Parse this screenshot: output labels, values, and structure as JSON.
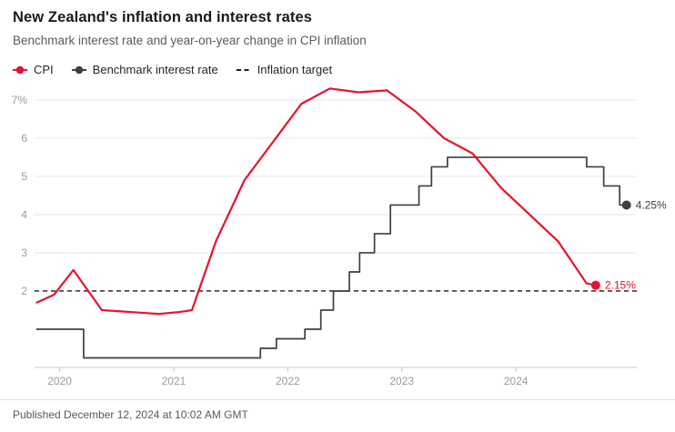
{
  "header": {
    "title": "New Zealand's inflation and interest rates",
    "subtitle": "Benchmark interest rate and year-on-year change in CPI inflation"
  },
  "legend": [
    {
      "label": "CPI",
      "color": "#e8122d",
      "style": "dot-line"
    },
    {
      "label": "Benchmark interest rate",
      "color": "#3f3f3f",
      "style": "dot-line"
    },
    {
      "label": "Inflation target",
      "color": "#1a1a1a",
      "style": "dashed"
    }
  ],
  "chart_data": {
    "type": "line",
    "title": "New Zealand's inflation and interest rates",
    "x_axis": {
      "ticks": [
        2020,
        2021,
        2022,
        2023,
        2024
      ],
      "labels": [
        "2020",
        "2021",
        "2022",
        "2023",
        "2024"
      ],
      "range": [
        2019.78,
        2025.06
      ]
    },
    "y_axis": {
      "ticks": [
        2,
        3,
        4,
        5,
        6,
        7
      ],
      "labels": [
        "2",
        "3",
        "4",
        "5",
        "6",
        "7%"
      ],
      "range": [
        0,
        7.45
      ]
    },
    "grid": true,
    "series": [
      {
        "name": "Inflation target",
        "type": "dashed-const",
        "value": 2,
        "color": "#1a1a1a"
      },
      {
        "name": "Benchmark interest rate",
        "type": "step",
        "color": "#3f3f3f",
        "width": 1.7,
        "end_label": "4.25%",
        "end_x": 2024.97,
        "points": [
          [
            2019.8,
            1.0
          ],
          [
            2020.21,
            0.25
          ],
          [
            2021.76,
            0.5
          ],
          [
            2021.9,
            0.75
          ],
          [
            2022.15,
            1.0
          ],
          [
            2022.29,
            1.5
          ],
          [
            2022.4,
            2.0
          ],
          [
            2022.54,
            2.5
          ],
          [
            2022.63,
            3.0
          ],
          [
            2022.76,
            3.5
          ],
          [
            2022.9,
            4.25
          ],
          [
            2023.15,
            4.75
          ],
          [
            2023.26,
            5.25
          ],
          [
            2023.4,
            5.5
          ],
          [
            2024.62,
            5.25
          ],
          [
            2024.77,
            4.75
          ],
          [
            2024.91,
            4.25
          ]
        ]
      },
      {
        "name": "CPI",
        "type": "line",
        "color": "#e8122d",
        "width": 2.2,
        "end_label": "2.15%",
        "points": [
          [
            2019.8,
            1.7
          ],
          [
            2019.95,
            1.9
          ],
          [
            2020.12,
            2.55
          ],
          [
            2020.37,
            1.5
          ],
          [
            2020.62,
            1.45
          ],
          [
            2020.87,
            1.4
          ],
          [
            2021.05,
            1.45
          ],
          [
            2021.16,
            1.5
          ],
          [
            2021.37,
            3.3
          ],
          [
            2021.62,
            4.9
          ],
          [
            2021.87,
            5.9
          ],
          [
            2022.12,
            6.9
          ],
          [
            2022.37,
            7.3
          ],
          [
            2022.62,
            7.2
          ],
          [
            2022.87,
            7.25
          ],
          [
            2023.12,
            6.7
          ],
          [
            2023.37,
            6.0
          ],
          [
            2023.62,
            5.6
          ],
          [
            2023.87,
            4.7
          ],
          [
            2024.12,
            4.0
          ],
          [
            2024.37,
            3.3
          ],
          [
            2024.62,
            2.2
          ],
          [
            2024.7,
            2.15
          ]
        ]
      }
    ]
  },
  "annotations": {
    "benchmark_end": "4.25%",
    "cpi_end": "2.15%"
  },
  "footer": {
    "published": "Published December 12, 2024 at 10:02 AM GMT"
  }
}
